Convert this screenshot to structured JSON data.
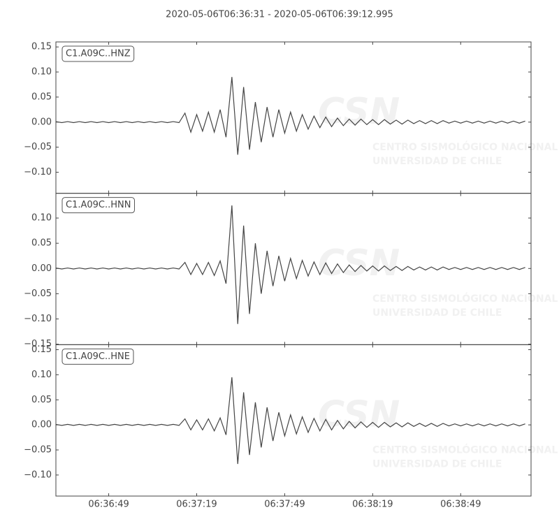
{
  "chart_data": {
    "type": "line",
    "title": "2020-05-06T06:36:31  -  2020-05-06T06:39:12.995",
    "color": "#444444",
    "watermark": {
      "logo": "CSN",
      "lines": [
        "CENTRO SISMOLÓGICO NACIONAL",
        "UNIVERSIDAD DE CHILE"
      ]
    },
    "xlim": [
      "06:36:31",
      "06:39:12.995"
    ],
    "xticks": [
      "06:36:49",
      "06:37:19",
      "06:37:49",
      "06:38:19",
      "06:38:49"
    ],
    "x": [
      "06:36:31",
      "06:36:33",
      "06:36:35",
      "06:36:37",
      "06:36:39",
      "06:36:41",
      "06:36:43",
      "06:36:45",
      "06:36:47",
      "06:36:49",
      "06:36:51",
      "06:36:53",
      "06:36:55",
      "06:36:57",
      "06:36:59",
      "06:37:01",
      "06:37:03",
      "06:37:05",
      "06:37:07",
      "06:37:09",
      "06:37:11",
      "06:37:13",
      "06:37:15",
      "06:37:17",
      "06:37:19",
      "06:37:21",
      "06:37:23",
      "06:37:25",
      "06:37:27",
      "06:37:29",
      "06:37:31",
      "06:37:33",
      "06:37:35",
      "06:37:37",
      "06:37:39",
      "06:37:41",
      "06:37:43",
      "06:37:45",
      "06:37:47",
      "06:37:49",
      "06:37:51",
      "06:37:53",
      "06:37:55",
      "06:37:57",
      "06:37:59",
      "06:38:01",
      "06:38:03",
      "06:38:05",
      "06:38:07",
      "06:38:09",
      "06:38:11",
      "06:38:13",
      "06:38:15",
      "06:38:17",
      "06:38:19",
      "06:38:21",
      "06:38:23",
      "06:38:25",
      "06:38:27",
      "06:38:29",
      "06:38:31",
      "06:38:33",
      "06:38:35",
      "06:38:37",
      "06:38:39",
      "06:38:41",
      "06:38:43",
      "06:38:45",
      "06:38:47",
      "06:38:49",
      "06:38:51",
      "06:38:53",
      "06:38:55",
      "06:38:57",
      "06:38:59",
      "06:39:01",
      "06:39:03",
      "06:39:05",
      "06:39:07",
      "06:39:09",
      "06:39:11"
    ],
    "series": [
      {
        "name": "C1.A09C..HNZ",
        "ylim": [
          -0.142,
          0.16
        ],
        "yticks": [
          {
            "value": -0.1,
            "label": "−0.10"
          },
          {
            "value": -0.05,
            "label": "−0.05"
          },
          {
            "value": 0,
            "label": "0.00"
          },
          0.05,
          {
            "value": 0.1,
            "label": "0.10"
          },
          0.15
        ],
        "values": [
          0.001,
          -0.001,
          0.001,
          -0.001,
          0.001,
          -0.001,
          0.001,
          -0.001,
          0.001,
          -0.001,
          0.001,
          -0.001,
          0.001,
          -0.001,
          0.001,
          -0.001,
          0.001,
          -0.001,
          0.001,
          -0.001,
          0.001,
          -0.001,
          0.018,
          -0.02,
          0.015,
          -0.018,
          0.02,
          -0.02,
          0.025,
          -0.03,
          0.09,
          -0.065,
          0.07,
          -0.055,
          0.04,
          -0.04,
          0.03,
          -0.03,
          0.025,
          -0.022,
          0.02,
          -0.018,
          0.015,
          -0.014,
          0.012,
          -0.011,
          0.01,
          -0.009,
          0.008,
          -0.007,
          0.006,
          -0.006,
          0.006,
          -0.005,
          0.005,
          -0.005,
          0.005,
          -0.004,
          0.004,
          -0.004,
          0.004,
          -0.003,
          0.003,
          -0.003,
          0.003,
          -0.003,
          0.003,
          -0.002,
          0.002,
          -0.002,
          0.002,
          -0.002,
          0.002,
          -0.002,
          0.002,
          -0.002,
          0.002,
          -0.002,
          0.002,
          -0.002,
          0.002
        ]
      },
      {
        "name": "C1.A09C..HNN",
        "ylim": [
          -0.151,
          0.149
        ],
        "yticks": [
          {
            "value": -0.15,
            "label": "−0.15"
          },
          {
            "value": -0.1,
            "label": "−0.10"
          },
          {
            "value": -0.05,
            "label": "−0.05"
          },
          {
            "value": 0,
            "label": "0.00"
          },
          0.05,
          {
            "value": 0.1,
            "label": "0.10"
          }
        ],
        "values": [
          0.001,
          -0.001,
          0.001,
          -0.001,
          0.001,
          -0.001,
          0.001,
          -0.001,
          0.001,
          -0.001,
          0.001,
          -0.001,
          0.001,
          -0.001,
          0.001,
          -0.001,
          0.001,
          -0.001,
          0.001,
          -0.001,
          0.001,
          -0.001,
          0.012,
          -0.012,
          0.01,
          -0.012,
          0.012,
          -0.014,
          0.015,
          -0.03,
          0.125,
          -0.11,
          0.085,
          -0.09,
          0.05,
          -0.05,
          0.035,
          -0.035,
          0.025,
          -0.025,
          0.02,
          -0.02,
          0.016,
          -0.015,
          0.013,
          -0.012,
          0.011,
          -0.01,
          0.009,
          -0.008,
          0.007,
          -0.006,
          0.006,
          -0.005,
          0.005,
          -0.005,
          0.005,
          -0.004,
          0.004,
          -0.004,
          0.004,
          -0.003,
          0.003,
          -0.003,
          0.003,
          -0.003,
          0.003,
          -0.002,
          0.002,
          -0.002,
          0.002,
          -0.002,
          0.002,
          -0.002,
          0.002,
          -0.002,
          0.002,
          -0.002,
          0.002,
          -0.002,
          0.002
        ]
      },
      {
        "name": "C1.A09C..HNE",
        "ylim": [
          -0.142,
          0.16
        ],
        "yticks": [
          {
            "value": -0.1,
            "label": "−0.10"
          },
          {
            "value": -0.05,
            "label": "−0.05"
          },
          {
            "value": 0,
            "label": "0.00"
          },
          0.05,
          {
            "value": 0.1,
            "label": "0.10"
          },
          0.15
        ],
        "values": [
          0.001,
          -0.001,
          0.001,
          -0.001,
          0.001,
          -0.001,
          0.001,
          -0.001,
          0.001,
          -0.001,
          0.001,
          -0.001,
          0.001,
          -0.001,
          0.001,
          -0.001,
          0.001,
          -0.001,
          0.001,
          -0.001,
          0.001,
          -0.001,
          0.012,
          -0.01,
          0.01,
          -0.01,
          0.012,
          -0.012,
          0.014,
          -0.02,
          0.095,
          -0.078,
          0.065,
          -0.06,
          0.045,
          -0.045,
          0.035,
          -0.032,
          0.025,
          -0.022,
          0.02,
          -0.018,
          0.016,
          -0.015,
          0.013,
          -0.012,
          0.011,
          -0.01,
          0.009,
          -0.008,
          0.007,
          -0.006,
          0.006,
          -0.005,
          0.005,
          -0.005,
          0.005,
          -0.004,
          0.004,
          -0.004,
          0.004,
          -0.003,
          0.003,
          -0.003,
          0.003,
          -0.003,
          0.003,
          -0.002,
          0.002,
          -0.002,
          0.002,
          -0.002,
          0.002,
          -0.002,
          0.002,
          -0.002,
          0.002,
          -0.002,
          0.002,
          -0.002,
          0.002
        ]
      }
    ]
  }
}
